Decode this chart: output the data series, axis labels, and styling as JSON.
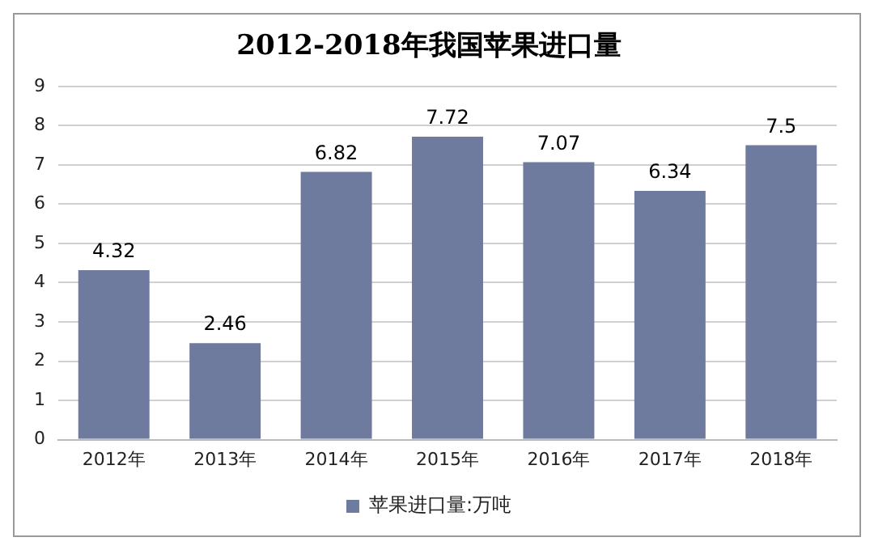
{
  "chart_data": {
    "type": "bar",
    "title": "2012-2018年我国苹果进口量",
    "categories": [
      "2012年",
      "2013年",
      "2014年",
      "2015年",
      "2016年",
      "2017年",
      "2018年"
    ],
    "series": [
      {
        "name": "苹果进口量:万吨",
        "color": "#6f7a9f",
        "values": [
          4.32,
          2.46,
          6.82,
          7.72,
          7.07,
          6.34,
          7.5
        ]
      }
    ],
    "ylim": [
      0,
      9
    ],
    "yticks": [
      0,
      1,
      2,
      3,
      4,
      5,
      6,
      7,
      8,
      9
    ],
    "grid": "y",
    "legend": "bottom",
    "data_labels": true
  }
}
